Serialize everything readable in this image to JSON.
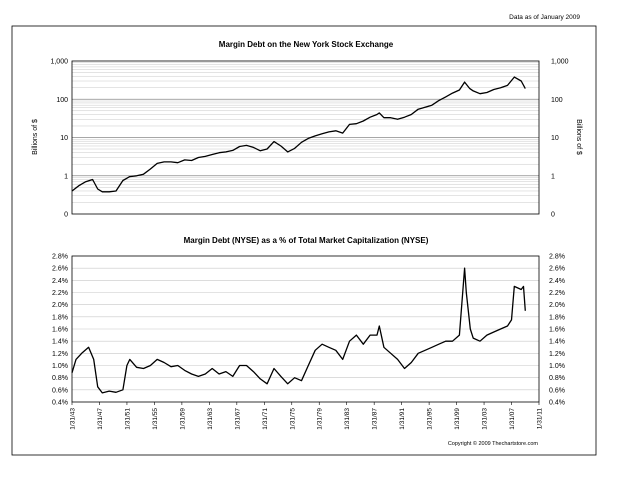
{
  "header": {
    "data_note": "Data as of January 2009"
  },
  "footer": {
    "copyright": "Copyright © 2009 Thechartstore.com"
  },
  "x_tick_labels": [
    "1/31/43",
    "1/31/47",
    "1/31/51",
    "1/31/55",
    "1/31/59",
    "1/31/63",
    "1/31/67",
    "1/31/71",
    "1/31/75",
    "1/31/79",
    "1/31/83",
    "1/31/87",
    "1/31/91",
    "1/31/95",
    "1/31/99",
    "1/31/03",
    "1/31/07",
    "1/31/11"
  ],
  "chart_data": [
    {
      "type": "line",
      "title": "Margin Debt on the New York Stock Exchange",
      "ylabel": "Billions of $",
      "y_scale": "log",
      "ylim": [
        0.1,
        1000
      ],
      "y_ticks": [
        0.1,
        1,
        10,
        100,
        1000
      ],
      "y_tick_labels": [
        "0",
        "1",
        "10",
        "100",
        "1,000"
      ],
      "xlim": [
        "1943-01-31",
        "2011-01-31"
      ],
      "grid": true,
      "series": [
        {
          "values": [
            [
              "1943-01-31",
              0.4
            ],
            [
              "1944-01-31",
              0.55
            ],
            [
              "1945-01-31",
              0.7
            ],
            [
              "1946-01-31",
              0.8
            ],
            [
              "1946-10-31",
              0.45
            ],
            [
              "1947-06-30",
              0.38
            ],
            [
              "1948-06-30",
              0.38
            ],
            [
              "1949-06-30",
              0.4
            ],
            [
              "1950-06-30",
              0.75
            ],
            [
              "1951-06-30",
              0.95
            ],
            [
              "1952-06-30",
              1.0
            ],
            [
              "1953-06-30",
              1.1
            ],
            [
              "1954-06-30",
              1.5
            ],
            [
              "1955-06-30",
              2.1
            ],
            [
              "1956-06-30",
              2.3
            ],
            [
              "1957-06-30",
              2.3
            ],
            [
              "1958-06-30",
              2.2
            ],
            [
              "1959-06-30",
              2.6
            ],
            [
              "1960-06-30",
              2.5
            ],
            [
              "1961-06-30",
              3.0
            ],
            [
              "1962-06-30",
              3.2
            ],
            [
              "1963-06-30",
              3.6
            ],
            [
              "1964-06-30",
              4.0
            ],
            [
              "1965-06-30",
              4.2
            ],
            [
              "1966-06-30",
              4.6
            ],
            [
              "1967-06-30",
              5.8
            ],
            [
              "1968-06-30",
              6.2
            ],
            [
              "1969-06-30",
              5.5
            ],
            [
              "1970-06-30",
              4.5
            ],
            [
              "1971-06-30",
              5.0
            ],
            [
              "1972-06-30",
              7.8
            ],
            [
              "1973-06-30",
              6.0
            ],
            [
              "1974-06-30",
              4.2
            ],
            [
              "1975-06-30",
              5.2
            ],
            [
              "1976-06-30",
              7.5
            ],
            [
              "1977-06-30",
              9.5
            ],
            [
              "1978-06-30",
              11.0
            ],
            [
              "1979-06-30",
              12.5
            ],
            [
              "1980-06-30",
              14.0
            ],
            [
              "1981-06-30",
              15.0
            ],
            [
              "1982-06-30",
              13.0
            ],
            [
              "1983-06-30",
              22.0
            ],
            [
              "1984-06-30",
              23.0
            ],
            [
              "1985-06-30",
              27.0
            ],
            [
              "1986-06-30",
              34.0
            ],
            [
              "1987-06-30",
              40.0
            ],
            [
              "1987-10-31",
              44.0
            ],
            [
              "1988-06-30",
              33.0
            ],
            [
              "1989-06-30",
              33.0
            ],
            [
              "1990-06-30",
              30.0
            ],
            [
              "1991-06-30",
              34.0
            ],
            [
              "1992-06-30",
              40.0
            ],
            [
              "1993-06-30",
              55.0
            ],
            [
              "1994-06-30",
              62.0
            ],
            [
              "1995-06-30",
              70.0
            ],
            [
              "1996-06-30",
              92.0
            ],
            [
              "1997-06-30",
              115.0
            ],
            [
              "1998-06-30",
              145.0
            ],
            [
              "1999-06-30",
              175.0
            ],
            [
              "2000-03-31",
              280.0
            ],
            [
              "2000-12-31",
              190.0
            ],
            [
              "2001-06-30",
              165.0
            ],
            [
              "2002-06-30",
              140.0
            ],
            [
              "2003-06-30",
              150.0
            ],
            [
              "2004-06-30",
              180.0
            ],
            [
              "2005-06-30",
              200.0
            ],
            [
              "2006-06-30",
              230.0
            ],
            [
              "2007-06-30",
              380.0
            ],
            [
              "2008-06-30",
              300.0
            ],
            [
              "2009-01-31",
              190.0
            ]
          ]
        }
      ]
    },
    {
      "type": "line",
      "title": "Margin Debt (NYSE) as a % of Total Market Capitalization (NYSE)",
      "ylim": [
        0.4,
        2.8
      ],
      "y_ticks": [
        0.4,
        0.6,
        0.8,
        1.0,
        1.2,
        1.4,
        1.6,
        1.8,
        2.0,
        2.2,
        2.4,
        2.6,
        2.8
      ],
      "y_tick_labels": [
        "0.4%",
        "0.6%",
        "0.8%",
        "1.0%",
        "1.2%",
        "1.4%",
        "1.6%",
        "1.8%",
        "2.0%",
        "2.2%",
        "2.4%",
        "2.6%",
        "2.8%"
      ],
      "xlim": [
        "1943-01-31",
        "2011-01-31"
      ],
      "grid": true,
      "series": [
        {
          "values": [
            [
              "1943-01-31",
              0.88
            ],
            [
              "1943-08-31",
              1.1
            ],
            [
              "1944-06-30",
              1.2
            ],
            [
              "1945-06-30",
              1.3
            ],
            [
              "1946-03-31",
              1.1
            ],
            [
              "1946-10-31",
              0.65
            ],
            [
              "1947-06-30",
              0.55
            ],
            [
              "1948-06-30",
              0.58
            ],
            [
              "1949-06-30",
              0.56
            ],
            [
              "1950-06-30",
              0.6
            ],
            [
              "1951-01-31",
              1.0
            ],
            [
              "1951-06-30",
              1.1
            ],
            [
              "1952-06-30",
              0.97
            ],
            [
              "1953-06-30",
              0.95
            ],
            [
              "1954-06-30",
              1.0
            ],
            [
              "1955-06-30",
              1.1
            ],
            [
              "1956-06-30",
              1.05
            ],
            [
              "1957-06-30",
              0.98
            ],
            [
              "1958-06-30",
              1.0
            ],
            [
              "1959-06-30",
              0.92
            ],
            [
              "1960-06-30",
              0.86
            ],
            [
              "1961-06-30",
              0.82
            ],
            [
              "1962-06-30",
              0.86
            ],
            [
              "1963-06-30",
              0.95
            ],
            [
              "1964-06-30",
              0.86
            ],
            [
              "1965-06-30",
              0.9
            ],
            [
              "1966-06-30",
              0.82
            ],
            [
              "1967-06-30",
              1.0
            ],
            [
              "1968-06-30",
              1.0
            ],
            [
              "1969-06-30",
              0.9
            ],
            [
              "1970-06-30",
              0.78
            ],
            [
              "1971-06-30",
              0.7
            ],
            [
              "1972-06-30",
              0.95
            ],
            [
              "1973-06-30",
              0.82
            ],
            [
              "1974-06-30",
              0.7
            ],
            [
              "1975-06-30",
              0.8
            ],
            [
              "1976-06-30",
              0.75
            ],
            [
              "1977-06-30",
              1.0
            ],
            [
              "1978-06-30",
              1.25
            ],
            [
              "1979-06-30",
              1.35
            ],
            [
              "1980-06-30",
              1.3
            ],
            [
              "1981-06-30",
              1.25
            ],
            [
              "1982-06-30",
              1.1
            ],
            [
              "1983-06-30",
              1.4
            ],
            [
              "1984-06-30",
              1.5
            ],
            [
              "1985-06-30",
              1.35
            ],
            [
              "1986-06-30",
              1.5
            ],
            [
              "1987-06-30",
              1.5
            ],
            [
              "1987-10-31",
              1.65
            ],
            [
              "1988-06-30",
              1.3
            ],
            [
              "1989-06-30",
              1.2
            ],
            [
              "1990-06-30",
              1.1
            ],
            [
              "1991-06-30",
              0.95
            ],
            [
              "1992-06-30",
              1.05
            ],
            [
              "1993-06-30",
              1.2
            ],
            [
              "1994-06-30",
              1.25
            ],
            [
              "1995-06-30",
              1.3
            ],
            [
              "1996-06-30",
              1.35
            ],
            [
              "1997-06-30",
              1.4
            ],
            [
              "1998-06-30",
              1.4
            ],
            [
              "1999-06-30",
              1.5
            ],
            [
              "2000-03-31",
              2.6
            ],
            [
              "2000-06-30",
              2.2
            ],
            [
              "2001-01-31",
              1.6
            ],
            [
              "2001-06-30",
              1.45
            ],
            [
              "2002-06-30",
              1.4
            ],
            [
              "2003-06-30",
              1.5
            ],
            [
              "2004-06-30",
              1.55
            ],
            [
              "2005-06-30",
              1.6
            ],
            [
              "2006-06-30",
              1.65
            ],
            [
              "2007-01-31",
              1.75
            ],
            [
              "2007-06-30",
              2.3
            ],
            [
              "2008-06-30",
              2.25
            ],
            [
              "2008-10-31",
              2.3
            ],
            [
              "2009-01-31",
              1.9
            ]
          ]
        }
      ]
    }
  ]
}
